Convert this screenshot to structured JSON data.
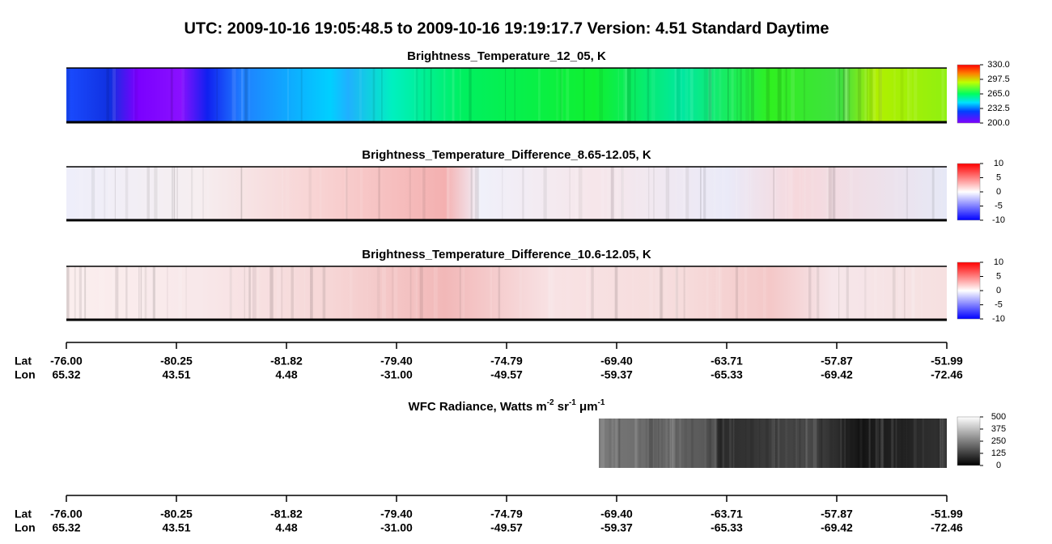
{
  "title": "UTC:  2009-10-16   19:05:48.5  to  2009-10-16   19:19:17.7    Version: 4.51  Standard Daytime",
  "panels": [
    {
      "title": "Brightness_Temperature_12_05, K",
      "lim": [
        200,
        330
      ],
      "ticks": [
        {
          "value": 330,
          "label": "330.0"
        },
        {
          "value": 297.5,
          "label": "297.5"
        },
        {
          "value": 265,
          "label": "265.0"
        },
        {
          "value": 232.5,
          "label": "232.5"
        },
        {
          "value": 200,
          "label": "200.0"
        }
      ]
    },
    {
      "title": "Brightness_Temperature_Difference_8.65-12.05, K",
      "lim": [
        -10,
        10
      ],
      "ticks": [
        10,
        5,
        0,
        -5,
        -10
      ]
    },
    {
      "title": "Brightness_Temperature_Difference_10.6-12.05, K",
      "lim": [
        -10,
        10
      ],
      "ticks": [
        10,
        5,
        0,
        -5,
        -10
      ]
    },
    {
      "title_parts": [
        "WFC Radiance, Watts m",
        "-2",
        " sr",
        "-1",
        " μm",
        "-1"
      ],
      "lim": [
        0,
        500
      ],
      "ticks": [
        500,
        375,
        250,
        125,
        0
      ]
    }
  ],
  "axis": {
    "lat_label": "Lat",
    "lon_label": "Lon",
    "lat": [
      "-76.00",
      "-80.25",
      "-81.82",
      "-79.40",
      "-74.79",
      "-69.40",
      "-63.71",
      "-57.87",
      "-51.99"
    ],
    "lon": [
      "65.32",
      "43.51",
      "4.48",
      "-31.00",
      "-49.57",
      "-59.37",
      "-65.33",
      "-69.42",
      "-72.46"
    ]
  }
}
